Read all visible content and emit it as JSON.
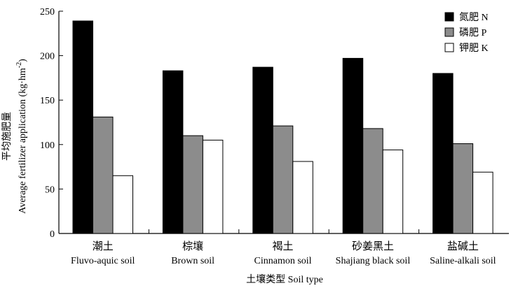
{
  "chart_data": {
    "type": "bar",
    "categories_cn": [
      "潮土",
      "棕壤",
      "褐土",
      "砂姜黑土",
      "盐碱土"
    ],
    "categories": [
      "Fluvo-aquic soil",
      "Brown soil",
      "Cinnamon soil",
      "Shajiang black soil",
      "Saline-alkali soil"
    ],
    "series": [
      {
        "name": "氮肥 N",
        "color": "#000000",
        "values": [
          239,
          183,
          187,
          197,
          180
        ]
      },
      {
        "name": "磷肥 P",
        "color": "#8c8c8c",
        "values": [
          131,
          110,
          121,
          118,
          101
        ]
      },
      {
        "name": "钾肥 K",
        "color": "#ffffff",
        "values": [
          65,
          105,
          81,
          94,
          69
        ]
      }
    ],
    "xlabel": "土壤类型 Soil type",
    "ylabel_cn": "平均施肥量",
    "ylabel_en": "Average fertilizer application (kg·hm",
    "ylabel_sup": "-2",
    "ylabel_end": ")",
    "ylim": [
      0,
      250
    ],
    "yticks": [
      0,
      50,
      100,
      150,
      200,
      250
    ],
    "legend_position": "top-right",
    "grid": false
  }
}
